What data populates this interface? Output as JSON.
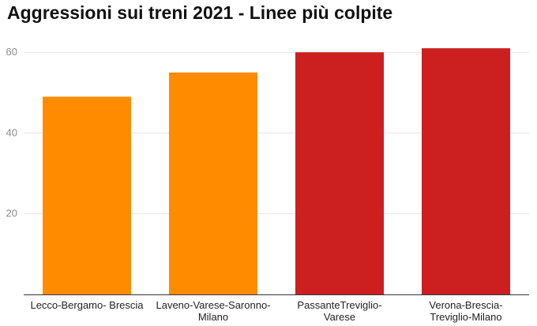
{
  "chart_data": {
    "type": "bar",
    "title": "Aggressioni sui treni 2021 - Linee più colpite",
    "xlabel": "",
    "ylabel": "",
    "ylim": [
      0,
      62
    ],
    "yticks": [
      20,
      40,
      60
    ],
    "grid": true,
    "categories": [
      [
        "Lecco-Bergamo- Brescia"
      ],
      [
        "Laveno-Varese-Saronno-",
        "Milano"
      ],
      [
        "PassanteTreviglio-",
        "Varese"
      ],
      [
        "Verona-Brescia-",
        "Treviglio-Milano"
      ]
    ],
    "values": [
      49,
      55,
      60,
      61
    ],
    "colors": [
      "#ff8c00",
      "#ff8c00",
      "#cc1f1f",
      "#cc1f1f"
    ],
    "gridline_color": "#e6e6e6",
    "axis_color": "#333333"
  }
}
